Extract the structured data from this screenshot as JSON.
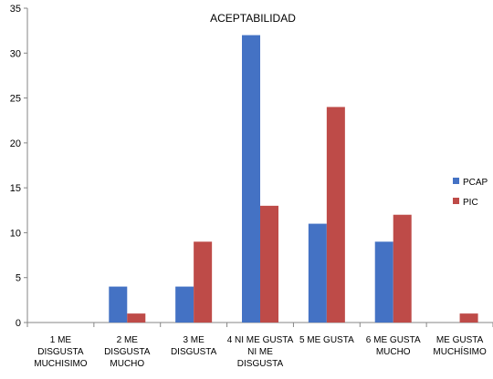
{
  "chart_data": {
    "type": "bar",
    "title": "ACEPTABILIDAD",
    "xlabel": "",
    "ylabel": "",
    "ylim": [
      0,
      35
    ],
    "yticks": [
      0,
      5,
      10,
      15,
      20,
      25,
      30,
      35
    ],
    "grid": false,
    "legend_position": "right",
    "categories": [
      [
        "1 ME",
        "DISGUSTA",
        "MUCHISIMO"
      ],
      [
        "2 ME",
        "DISGUSTA",
        "MUCHO"
      ],
      [
        "3 ME",
        "DISGUSTA"
      ],
      [
        "4 NI ME GUSTA",
        "NI ME",
        "DISGUSTA"
      ],
      [
        "5 ME GUSTA"
      ],
      [
        "6 ME GUSTA",
        "MUCHO"
      ],
      [
        "ME GUSTA",
        "MUCHÍSIMO"
      ]
    ],
    "series": [
      {
        "name": "PCAP",
        "color": "#4472C4",
        "values": [
          0,
          4,
          4,
          32,
          11,
          9,
          0
        ]
      },
      {
        "name": "PIC",
        "color": "#BE4B48",
        "values": [
          0,
          1,
          9,
          13,
          24,
          12,
          1
        ]
      }
    ]
  }
}
